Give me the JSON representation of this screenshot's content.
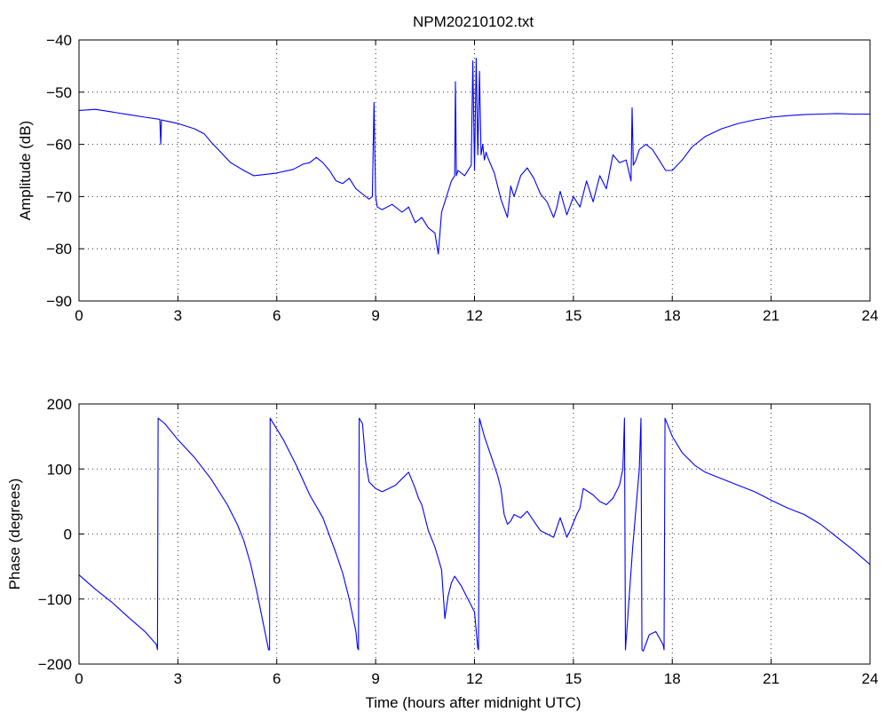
{
  "figure": {
    "title": "NPM20210102.txt",
    "xlabel": "Time (hours after midnight UTC)"
  },
  "colors": {
    "line": "#0000ff",
    "axes": "#000000",
    "grid": "#000000",
    "background": "#ffffff"
  },
  "chart_data": [
    {
      "type": "line",
      "title": "NPM20210102.txt",
      "xlabel": "",
      "ylabel": "Amplitude (dB)",
      "xlim": [
        0,
        24
      ],
      "ylim": [
        -90,
        -40
      ],
      "xticks": [
        0,
        3,
        6,
        9,
        12,
        15,
        18,
        21,
        24
      ],
      "yticks": [
        -90,
        -80,
        -70,
        -60,
        -50,
        -40
      ],
      "grid": true,
      "series": [
        {
          "color": "#0000ff",
          "x": [
            0.0,
            0.5,
            1.0,
            1.5,
            2.0,
            2.45,
            2.48,
            2.5,
            2.55,
            3.0,
            3.5,
            3.8,
            4.0,
            4.3,
            4.6,
            5.0,
            5.3,
            5.6,
            6.0,
            6.5,
            6.8,
            7.0,
            7.2,
            7.4,
            7.6,
            7.8,
            8.0,
            8.2,
            8.4,
            8.6,
            8.8,
            8.9,
            8.95,
            9.0,
            9.05,
            9.2,
            9.5,
            9.8,
            10.0,
            10.2,
            10.4,
            10.6,
            10.8,
            10.9,
            11.0,
            11.1,
            11.2,
            11.3,
            11.4,
            11.42,
            11.45,
            11.5,
            11.7,
            11.9,
            11.95,
            12.0,
            12.05,
            12.1,
            12.15,
            12.2,
            12.25,
            12.3,
            12.35,
            12.4,
            12.6,
            12.8,
            13.0,
            13.1,
            13.2,
            13.4,
            13.6,
            13.8,
            14.0,
            14.2,
            14.4,
            14.5,
            14.6,
            14.8,
            15.0,
            15.2,
            15.4,
            15.6,
            15.8,
            16.0,
            16.2,
            16.4,
            16.6,
            16.75,
            16.78,
            16.82,
            16.9,
            17.0,
            17.2,
            17.4,
            17.6,
            17.8,
            18.0,
            18.3,
            18.6,
            19.0,
            19.5,
            20.0,
            20.5,
            21.0,
            21.5,
            22.0,
            22.5,
            23.0,
            23.5,
            24.0
          ],
          "values": [
            -53.5,
            -53.3,
            -53.8,
            -54.3,
            -54.8,
            -55.2,
            -60.0,
            -55.3,
            -55.4,
            -56.0,
            -57.0,
            -58.0,
            -59.5,
            -61.5,
            -63.5,
            -65.0,
            -66.0,
            -65.8,
            -65.5,
            -64.8,
            -63.8,
            -63.5,
            -62.5,
            -63.5,
            -65.0,
            -67.0,
            -67.5,
            -66.5,
            -68.5,
            -69.5,
            -70.5,
            -70.0,
            -52.0,
            -70.0,
            -72.0,
            -72.5,
            -71.5,
            -73.0,
            -72.0,
            -75.0,
            -74.0,
            -76.0,
            -77.0,
            -81.0,
            -73.0,
            -71.0,
            -69.0,
            -67.0,
            -66.0,
            -48.0,
            -66.0,
            -65.0,
            -66.0,
            -64.0,
            -44.0,
            -65.0,
            -43.5,
            -62.0,
            -46.0,
            -62.0,
            -60.0,
            -63.0,
            -61.5,
            -62.5,
            -65.5,
            -70.5,
            -74.0,
            -68.0,
            -70.0,
            -66.0,
            -64.5,
            -66.5,
            -69.5,
            -71.0,
            -74.0,
            -72.0,
            -69.0,
            -73.5,
            -70.0,
            -72.0,
            -67.0,
            -71.0,
            -66.0,
            -68.5,
            -62.0,
            -63.5,
            -63.0,
            -67.0,
            -53.0,
            -64.0,
            -63.0,
            -61.0,
            -60.0,
            -61.0,
            -63.0,
            -65.0,
            -65.0,
            -63.0,
            -60.5,
            -58.5,
            -57.0,
            -56.0,
            -55.3,
            -54.8,
            -54.5,
            -54.3,
            -54.2,
            -54.1,
            -54.2,
            -54.2
          ]
        }
      ]
    },
    {
      "type": "line",
      "title": "",
      "xlabel": "Time (hours after midnight UTC)",
      "ylabel": "Phase (degrees)",
      "xlim": [
        0,
        24
      ],
      "ylim": [
        -200,
        200
      ],
      "xticks": [
        0,
        3,
        6,
        9,
        12,
        15,
        18,
        21,
        24
      ],
      "yticks": [
        -200,
        -100,
        0,
        100,
        200
      ],
      "grid": true,
      "series": [
        {
          "color": "#0000ff",
          "x": [
            0.0,
            0.5,
            1.0,
            1.5,
            2.0,
            2.35,
            2.38,
            2.4,
            2.6,
            3.0,
            3.5,
            4.0,
            4.5,
            4.8,
            5.0,
            5.2,
            5.4,
            5.6,
            5.75,
            5.78,
            5.8,
            6.2,
            6.6,
            7.0,
            7.4,
            7.8,
            8.0,
            8.2,
            8.4,
            8.45,
            8.48,
            8.5,
            8.6,
            8.7,
            8.8,
            9.0,
            9.2,
            9.4,
            9.6,
            9.8,
            10.0,
            10.2,
            10.3,
            10.4,
            10.6,
            10.8,
            11.0,
            11.1,
            11.2,
            11.3,
            11.4,
            11.6,
            11.8,
            12.0,
            12.1,
            12.12,
            12.15,
            12.3,
            12.5,
            12.7,
            12.8,
            12.9,
            13.0,
            13.1,
            13.2,
            13.4,
            13.6,
            13.8,
            14.0,
            14.2,
            14.4,
            14.5,
            14.6,
            14.8,
            14.9,
            15.1,
            15.2,
            15.3,
            15.6,
            15.8,
            16.0,
            16.2,
            16.4,
            16.5,
            16.55,
            16.58,
            16.62,
            16.8,
            17.0,
            17.05,
            17.08,
            17.12,
            17.3,
            17.5,
            17.72,
            17.75,
            17.78,
            18.0,
            18.3,
            18.7,
            19.0,
            19.5,
            20.0,
            20.5,
            21.0,
            21.5,
            22.0,
            22.5,
            23.0,
            23.5,
            24.0
          ],
          "values": [
            -63,
            -85,
            -105,
            -128,
            -150,
            -170,
            -178,
            178,
            170,
            145,
            118,
            85,
            45,
            15,
            -10,
            -45,
            -90,
            -140,
            -178,
            -178,
            178,
            145,
            105,
            60,
            25,
            -30,
            -60,
            -100,
            -150,
            -175,
            -178,
            178,
            170,
            110,
            80,
            70,
            65,
            70,
            75,
            85,
            95,
            70,
            55,
            45,
            5,
            -20,
            -55,
            -130,
            -95,
            -75,
            -65,
            -80,
            -100,
            -120,
            -175,
            -178,
            178,
            150,
            120,
            90,
            70,
            30,
            15,
            20,
            30,
            25,
            35,
            20,
            5,
            0,
            -5,
            10,
            25,
            -5,
            5,
            30,
            40,
            70,
            60,
            50,
            45,
            55,
            75,
            100,
            178,
            -178,
            -150,
            -20,
            100,
            178,
            -178,
            -180,
            -155,
            -150,
            -170,
            -178,
            178,
            150,
            125,
            105,
            95,
            85,
            75,
            65,
            52,
            40,
            30,
            15,
            -5,
            -25,
            -47
          ]
        }
      ]
    }
  ]
}
